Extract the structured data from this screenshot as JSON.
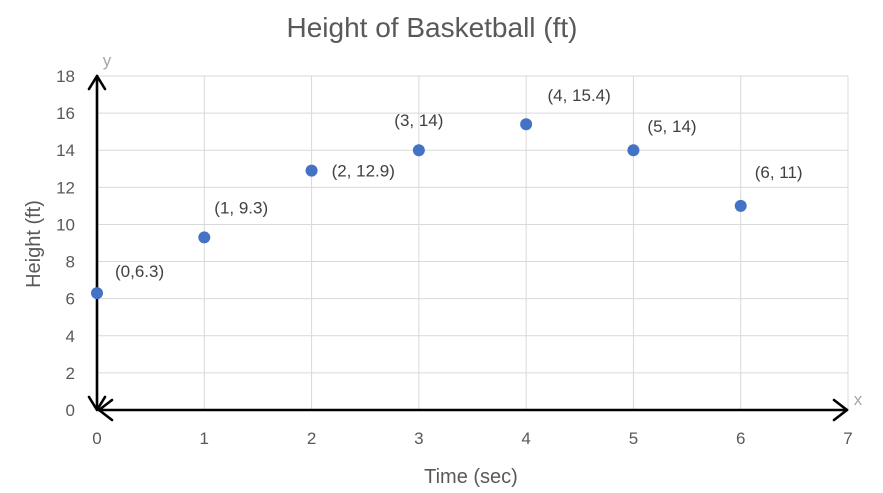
{
  "chart_data": {
    "type": "scatter",
    "title": "Height of Basketball (ft)",
    "xlabel": "Time (sec)",
    "ylabel": "Height (ft)",
    "x_axis_letter": "x",
    "y_axis_letter": "y",
    "xlim": [
      0,
      7
    ],
    "ylim": [
      0,
      18
    ],
    "x_ticks": [
      0,
      1,
      2,
      3,
      4,
      5,
      6,
      7
    ],
    "y_ticks": [
      0,
      2,
      4,
      6,
      8,
      10,
      12,
      14,
      16,
      18
    ],
    "grid": true,
    "marker_color": "#4472C4",
    "series": [
      {
        "points": [
          {
            "x": 0,
            "y": 6.3,
            "label": "(0,6.3)"
          },
          {
            "x": 1,
            "y": 9.3,
            "label": "(1, 9.3)"
          },
          {
            "x": 2,
            "y": 12.9,
            "label": "(2, 12.9)"
          },
          {
            "x": 3,
            "y": 14,
            "label": "(3, 14)"
          },
          {
            "x": 4,
            "y": 15.4,
            "label": "(4, 15.4)"
          },
          {
            "x": 5,
            "y": 14,
            "label": "(5, 14)"
          },
          {
            "x": 6,
            "y": 11,
            "label": "(6, 11)"
          }
        ]
      }
    ]
  }
}
